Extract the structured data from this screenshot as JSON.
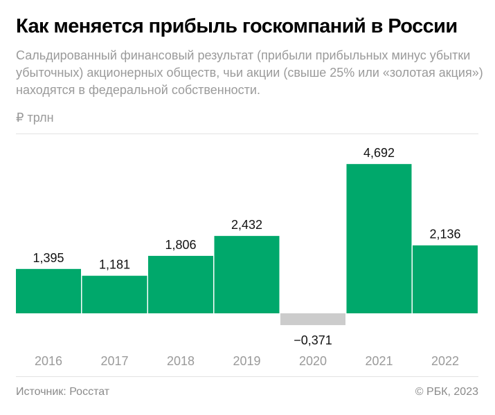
{
  "title": "Как меняется прибыль госкомпаний в России",
  "subtitle": "Сальдированный финансовый результат (прибыли прибыльных минус убытки убыточных) акционерных обществ, чьи акции (свыше 25% или «золотая акция») находятся в федеральной собственности.",
  "footer": {
    "source": "Источник: Росстат",
    "copyright": "© РБК, 2023"
  },
  "chart_data": {
    "type": "bar",
    "title": "Как меняется прибыль госкомпаний в России",
    "ylabel": "₽ трлн",
    "categories": [
      "2016",
      "2017",
      "2018",
      "2019",
      "2020",
      "2021",
      "2022"
    ],
    "values": [
      1.395,
      1.181,
      1.806,
      2.432,
      -0.371,
      4.692,
      2.136
    ],
    "value_labels": [
      "1,395",
      "1,181",
      "1,806",
      "2,432",
      "−0,371",
      "4,692",
      "2,136"
    ],
    "colors": {
      "positive": "#00a86b",
      "negative": "#cccccc"
    },
    "grid": false
  }
}
